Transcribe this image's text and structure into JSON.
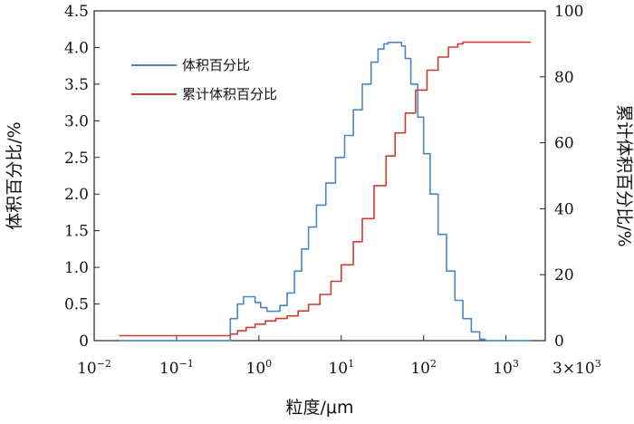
{
  "chart_data": {
    "type": "line",
    "xscale": "log",
    "xlabel": "粒度/μm",
    "ylabel_left": "体积百分比/%",
    "ylabel_right": "累计体积百分比/%",
    "xlim": [
      0.01,
      3000
    ],
    "ylim_left": [
      0,
      4.5
    ],
    "ylim_right": [
      0,
      100
    ],
    "x_ticks": [
      {
        "value": 0.01,
        "base": "10",
        "exp": "−2"
      },
      {
        "value": 0.1,
        "base": "10",
        "exp": "−1"
      },
      {
        "value": 1,
        "base": "10",
        "exp": "0"
      },
      {
        "value": 10,
        "base": "10",
        "exp": "1"
      },
      {
        "value": 100,
        "base": "10",
        "exp": "2"
      },
      {
        "value": 1000,
        "base": "10",
        "exp": "3"
      },
      {
        "value": 3000,
        "base": "3×10",
        "exp": "3"
      }
    ],
    "y_left_ticks": [
      "0",
      "0.5",
      "1.0",
      "1.5",
      "2.0",
      "2.5",
      "3.0",
      "3.5",
      "4.0",
      "4.5"
    ],
    "y_right_ticks": [
      "0",
      "20",
      "40",
      "60",
      "80",
      "100"
    ],
    "legend_position": "top-left",
    "series": [
      {
        "name": "体积百分比",
        "color": "#4a86c5",
        "axis": "left",
        "x": [
          0.02,
          0.3,
          0.36,
          0.45,
          0.55,
          0.65,
          0.75,
          0.9,
          1.05,
          1.25,
          1.5,
          1.8,
          2.2,
          2.7,
          3.3,
          4.0,
          5.0,
          6.5,
          8.5,
          11,
          14,
          18,
          23,
          28,
          33,
          37,
          42,
          48,
          54,
          60,
          70,
          85,
          100,
          120,
          150,
          190,
          240,
          300,
          380,
          480,
          560,
          700,
          1000,
          2000
        ],
        "y": [
          0,
          0,
          0,
          0.3,
          0.5,
          0.6,
          0.6,
          0.52,
          0.45,
          0.4,
          0.4,
          0.48,
          0.65,
          0.95,
          1.25,
          1.55,
          1.85,
          2.15,
          2.5,
          2.8,
          3.15,
          3.5,
          3.8,
          3.98,
          4.05,
          4.07,
          4.07,
          4.07,
          4.02,
          3.85,
          3.5,
          3.05,
          2.55,
          2.0,
          1.45,
          0.95,
          0.55,
          0.3,
          0.12,
          0.02,
          0,
          0,
          0,
          0
        ]
      },
      {
        "name": "累计体积百分比",
        "color": "#d13a2f",
        "axis": "right",
        "x": [
          0.02,
          0.3,
          0.35,
          0.45,
          0.55,
          0.7,
          0.9,
          1.2,
          1.6,
          2.2,
          3.0,
          4.0,
          5.5,
          7.5,
          10,
          14,
          18,
          25,
          35,
          45,
          60,
          80,
          110,
          150,
          200,
          260,
          300,
          400,
          1000,
          2000
        ],
        "y": [
          1.5,
          1.5,
          1.5,
          2,
          3,
          4,
          5,
          6,
          6.7,
          7.5,
          9,
          11,
          14,
          18,
          23,
          30,
          37,
          47,
          56,
          63,
          69,
          76,
          82,
          86,
          89,
          90,
          90.5,
          90.5,
          90.5,
          90.5
        ]
      }
    ]
  }
}
